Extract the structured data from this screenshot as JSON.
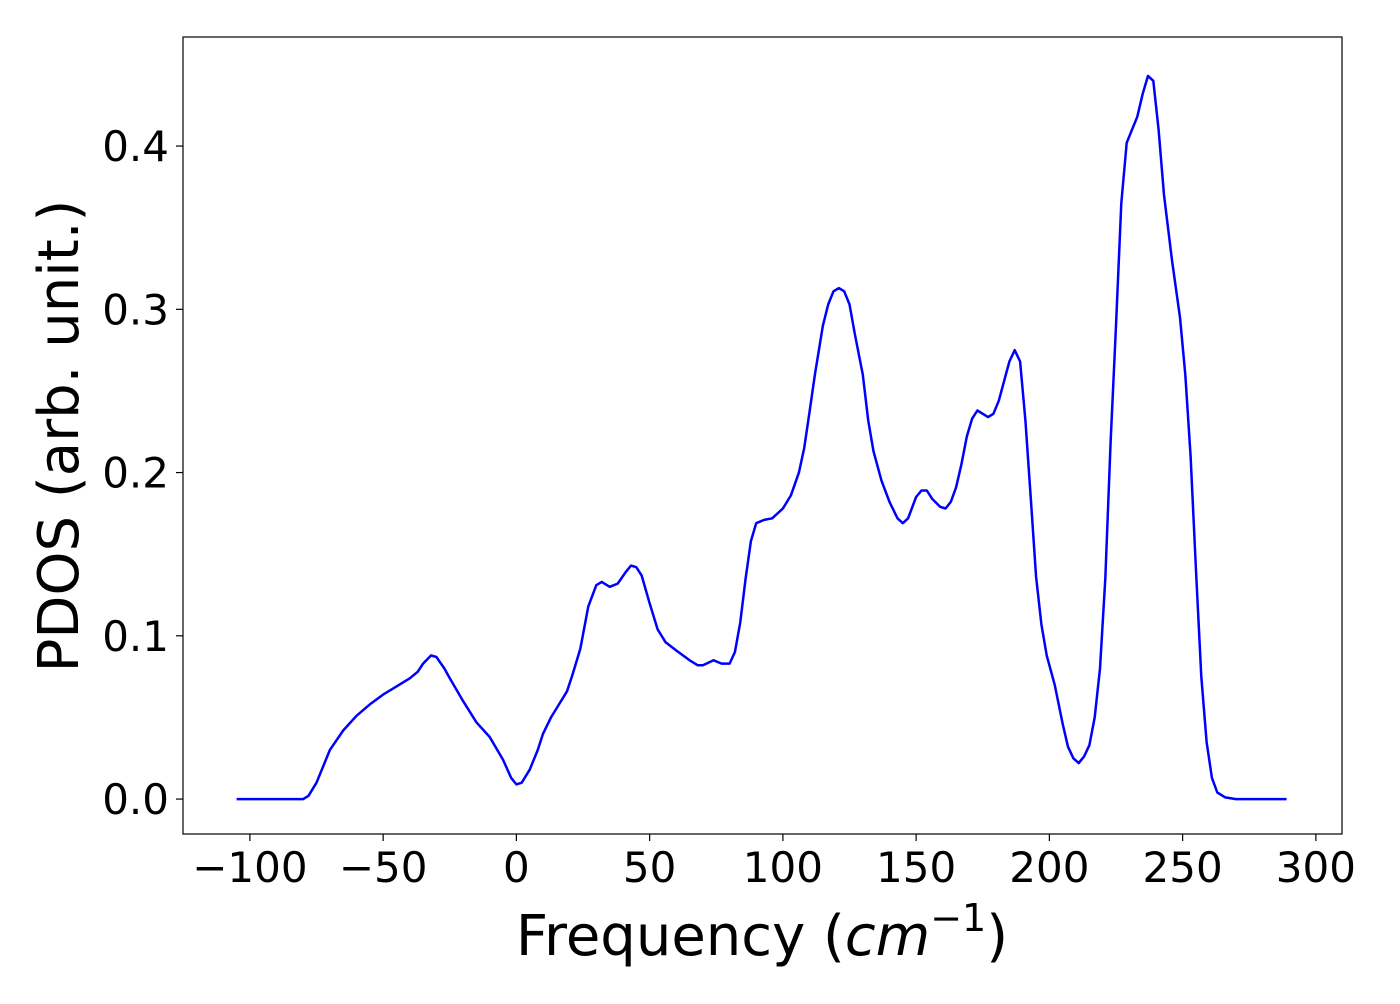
{
  "chart_data": {
    "type": "line",
    "xlabel": [
      "Frequency (",
      "cm",
      "−1",
      ")"
    ],
    "ylabel": "PDOS (arb. unit.)",
    "xlim": [
      -125.1,
      309.8
    ],
    "ylim": [
      -0.0214,
      0.4668
    ],
    "xticks": [
      {
        "value": -100,
        "label": "−100"
      },
      {
        "value": -50,
        "label": "−50"
      },
      0,
      50,
      100,
      150,
      200,
      250,
      300
    ],
    "yticks": [
      {
        "value": 0,
        "label": "0.0"
      },
      0.1,
      0.2,
      0.3,
      0.4
    ],
    "series": [
      {
        "color": "#0000ff",
        "x": [
          -105,
          -80,
          -78,
          -75,
          -72,
          -70,
          -65,
          -60,
          -55,
          -50,
          -45,
          -40,
          -37,
          -35,
          -32,
          -30,
          -27,
          -25,
          -20,
          -15,
          -10,
          -5,
          -2,
          0,
          2,
          5,
          8,
          10,
          13,
          16,
          19,
          21,
          24,
          27,
          30,
          32,
          35,
          38,
          41,
          43,
          45,
          47,
          50,
          53,
          56,
          60,
          65,
          68,
          70,
          74,
          77,
          80,
          82,
          84,
          86,
          88,
          90,
          93,
          96,
          100,
          103,
          106,
          108,
          110,
          112,
          115,
          117,
          119,
          121,
          123,
          125,
          127,
          130,
          132,
          134,
          137,
          140,
          143,
          145,
          147,
          150,
          152,
          154,
          156,
          159,
          161,
          163,
          165,
          167,
          169,
          171,
          173,
          175,
          177,
          179,
          181,
          183,
          185,
          187,
          189,
          191,
          193,
          195,
          197,
          199,
          202,
          205,
          207,
          209,
          211,
          213,
          215,
          217,
          219,
          221,
          223,
          225,
          227,
          229,
          231,
          233,
          235,
          237,
          239,
          241,
          243,
          246,
          249,
          251,
          253,
          255,
          257,
          259,
          261,
          263,
          266,
          270,
          289
        ],
        "values": [
          0,
          0,
          0.002,
          0.01,
          0.022,
          0.03,
          0.042,
          0.051,
          0.058,
          0.064,
          0.069,
          0.074,
          0.078,
          0.083,
          0.088,
          0.087,
          0.08,
          0.074,
          0.06,
          0.047,
          0.038,
          0.024,
          0.013,
          0.009,
          0.01,
          0.018,
          0.03,
          0.04,
          0.05,
          0.058,
          0.066,
          0.076,
          0.092,
          0.118,
          0.131,
          0.133,
          0.13,
          0.132,
          0.139,
          0.143,
          0.142,
          0.137,
          0.12,
          0.104,
          0.096,
          0.091,
          0.085,
          0.082,
          0.082,
          0.085,
          0.083,
          0.083,
          0.09,
          0.108,
          0.135,
          0.158,
          0.169,
          0.171,
          0.172,
          0.178,
          0.186,
          0.2,
          0.215,
          0.237,
          0.26,
          0.29,
          0.303,
          0.311,
          0.313,
          0.311,
          0.303,
          0.285,
          0.26,
          0.232,
          0.213,
          0.195,
          0.182,
          0.172,
          0.169,
          0.172,
          0.185,
          0.189,
          0.189,
          0.184,
          0.179,
          0.178,
          0.182,
          0.191,
          0.205,
          0.222,
          0.233,
          0.238,
          0.236,
          0.234,
          0.236,
          0.244,
          0.256,
          0.268,
          0.275,
          0.268,
          0.232,
          0.185,
          0.136,
          0.107,
          0.088,
          0.07,
          0.046,
          0.032,
          0.025,
          0.022,
          0.026,
          0.033,
          0.05,
          0.08,
          0.135,
          0.22,
          0.29,
          0.365,
          0.402,
          0.41,
          0.418,
          0.432,
          0.443,
          0.44,
          0.41,
          0.37,
          0.33,
          0.295,
          0.26,
          0.21,
          0.14,
          0.075,
          0.035,
          0.013,
          0.004,
          0.001,
          0,
          0
        ]
      }
    ]
  }
}
